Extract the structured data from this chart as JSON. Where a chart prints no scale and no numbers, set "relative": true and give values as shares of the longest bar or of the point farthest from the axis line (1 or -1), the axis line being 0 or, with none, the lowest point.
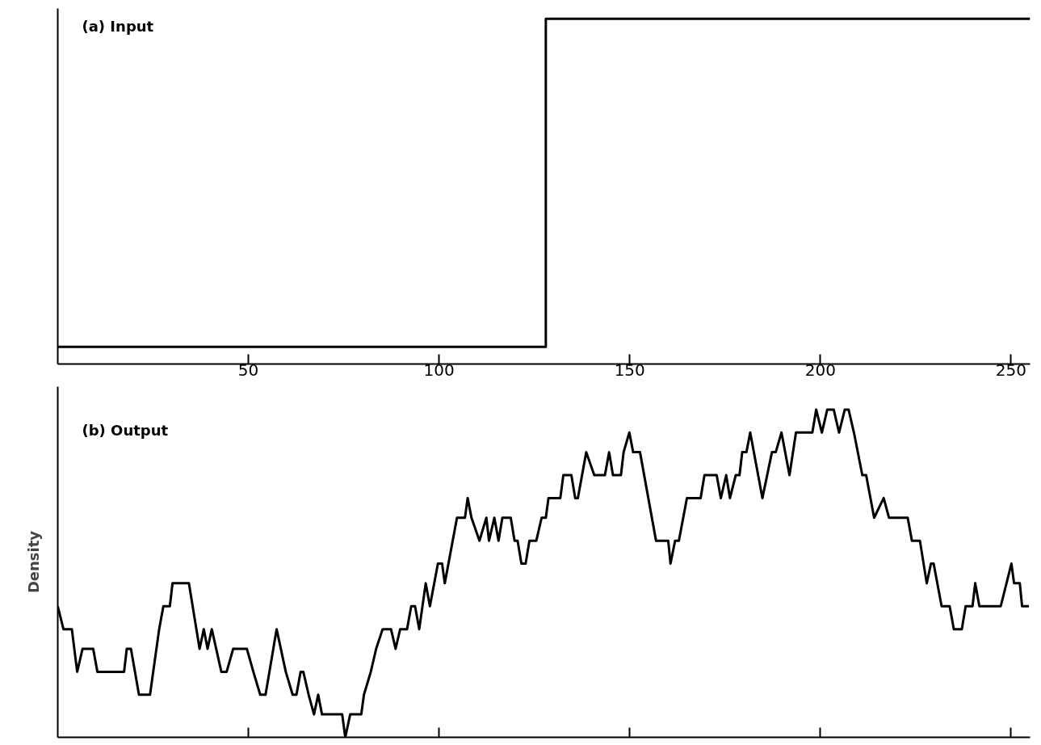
{
  "chart_data": [
    {
      "type": "line",
      "title": "(a) Input",
      "relative": true,
      "xlim": [
        0,
        255
      ],
      "xticks": [
        50,
        100,
        150,
        200,
        250
      ],
      "tick_labels": "x",
      "x": [
        0,
        128,
        128,
        255
      ],
      "series": [
        {
          "color": "#000000",
          "values": [
            0.05,
            0.05,
            1,
            1
          ]
        }
      ]
    },
    {
      "type": "line",
      "title": "(b) Output",
      "ylabel": "Density",
      "relative": true,
      "xlim": [
        0,
        255
      ],
      "xticks": [
        50,
        100,
        150,
        200,
        250
      ],
      "tick_labels": false,
      "x": [
        0,
        1.5,
        3.7,
        5.1,
        6.5,
        9.3,
        10.4,
        17.4,
        18.1,
        19.2,
        21.3,
        24.2,
        26.6,
        27.7,
        29.4,
        30.1,
        34.4,
        37.2,
        38.3,
        39.3,
        40.4,
        42.9,
        44.3,
        46,
        49.6,
        51.3,
        53.1,
        54.5,
        57.4,
        59.8,
        61.6,
        62.6,
        63.7,
        64.4,
        65.8,
        67.2,
        68.3,
        69.3,
        74.6,
        75.4,
        76.7,
        79.6,
        80.3,
        82.1,
        83.5,
        85.2,
        87.4,
        88.6,
        89.8,
        91.6,
        92.7,
        93.7,
        94.8,
        96.5,
        97.6,
        99.7,
        100.8,
        101.5,
        104.7,
        106.8,
        107.5,
        108.5,
        110.6,
        112.4,
        113.1,
        114.5,
        115.6,
        116.6,
        118.8,
        119.8,
        120.6,
        121.6,
        122.7,
        123.7,
        125.5,
        126.9,
        128,
        128.7,
        131.8,
        132.6,
        134.7,
        135.7,
        136.4,
        138.6,
        140.7,
        143.5,
        144.6,
        145.6,
        147.7,
        148.4,
        149.9,
        150.9,
        152.7,
        156.9,
        160.1,
        160.7,
        161.9,
        162.9,
        165,
        168.6,
        169.6,
        172.8,
        173.9,
        175.3,
        176.3,
        177.8,
        178.8,
        179.5,
        180.6,
        181.6,
        184.8,
        187.3,
        188.3,
        189.8,
        191.9,
        193.6,
        197.9,
        198.9,
        200.4,
        201.8,
        203.5,
        204.9,
        206.4,
        207.4,
        208.8,
        211,
        212,
        214.1,
        216.6,
        218,
        222.9,
        224,
        226.1,
        227.9,
        229,
        229.7,
        231.8,
        233.9,
        235,
        237.1,
        238.1,
        239.9,
        240.6,
        241.7,
        247.3,
        250.1,
        250.8,
        252.3,
        252.9,
        254.7
      ],
      "series": [
        {
          "color": "#000000",
          "values": [
            0.4,
            0.33,
            0.33,
            0.2,
            0.27,
            0.27,
            0.2,
            0.2,
            0.27,
            0.27,
            0.13,
            0.13,
            0.33,
            0.4,
            0.4,
            0.47,
            0.47,
            0.27,
            0.33,
            0.27,
            0.33,
            0.2,
            0.2,
            0.27,
            0.27,
            0.2,
            0.13,
            0.13,
            0.33,
            0.2,
            0.13,
            0.13,
            0.2,
            0.2,
            0.13,
            0.07,
            0.13,
            0.07,
            0.07,
            0,
            0.07,
            0.07,
            0.13,
            0.2,
            0.27,
            0.33,
            0.33,
            0.27,
            0.33,
            0.33,
            0.4,
            0.4,
            0.33,
            0.47,
            0.4,
            0.53,
            0.53,
            0.47,
            0.67,
            0.67,
            0.73,
            0.67,
            0.6,
            0.67,
            0.6,
            0.67,
            0.6,
            0.67,
            0.67,
            0.6,
            0.6,
            0.53,
            0.53,
            0.6,
            0.6,
            0.67,
            0.67,
            0.73,
            0.73,
            0.8,
            0.8,
            0.73,
            0.73,
            0.87,
            0.8,
            0.8,
            0.87,
            0.8,
            0.8,
            0.87,
            0.93,
            0.87,
            0.87,
            0.6,
            0.6,
            0.53,
            0.6,
            0.6,
            0.73,
            0.73,
            0.8,
            0.8,
            0.73,
            0.8,
            0.73,
            0.8,
            0.8,
            0.87,
            0.87,
            0.93,
            0.73,
            0.87,
            0.87,
            0.93,
            0.8,
            0.93,
            0.93,
            1,
            0.93,
            1,
            1,
            0.93,
            1,
            1,
            0.93,
            0.8,
            0.8,
            0.67,
            0.73,
            0.67,
            0.67,
            0.6,
            0.6,
            0.47,
            0.53,
            0.53,
            0.4,
            0.4,
            0.33,
            0.33,
            0.4,
            0.4,
            0.47,
            0.4,
            0.4,
            0.53,
            0.47,
            0.47,
            0.4,
            0.4
          ]
        }
      ]
    }
  ]
}
